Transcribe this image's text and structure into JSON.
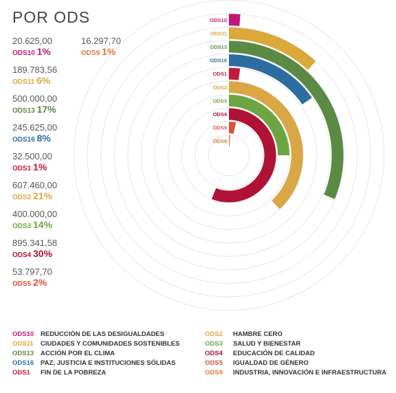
{
  "title": "POR ODS",
  "chart_data": {
    "type": "radial-bar",
    "max_value": 1600000,
    "series": [
      {
        "code": "ODS10",
        "amount": "20.625,00",
        "pct": "1%",
        "value": 20625,
        "color": "#c3167b"
      },
      {
        "code": "ODS11",
        "amount": "189.783,56",
        "pct": "6%",
        "value": 189783.56,
        "color": "#dba83a"
      },
      {
        "code": "ODS13",
        "amount": "500.000,00",
        "pct": "17%",
        "value": 500000,
        "color": "#5a8a43"
      },
      {
        "code": "ODS16",
        "amount": "245.625,00",
        "pct": "8%",
        "value": 245625,
        "color": "#2c6da0"
      },
      {
        "code": "ODS1",
        "amount": "32.500,00",
        "pct": "1%",
        "value": 32500,
        "color": "#c11b3c"
      },
      {
        "code": "ODS2",
        "amount": "607.460,00",
        "pct": "21%",
        "value": 607460,
        "color": "#d9a745"
      },
      {
        "code": "ODS3",
        "amount": "400.000,00",
        "pct": "14%",
        "value": 400000,
        "color": "#6da543"
      },
      {
        "code": "ODS4",
        "amount": "895.341,58",
        "pct": "30%",
        "value": 895341.58,
        "color": "#b01235"
      },
      {
        "code": "ODS5",
        "amount": "53.797,70",
        "pct": "2%",
        "value": 53797.7,
        "color": "#d9533a"
      },
      {
        "code": "ODS9",
        "amount": "16.297,70",
        "pct": "1%",
        "value": 16297.7,
        "color": "#e0793a"
      }
    ]
  },
  "legend": [
    {
      "code": "ODS10",
      "label": "REDUCCIÓN DE LAS DESIGUALDADES",
      "color": "#c3167b"
    },
    {
      "code": "ODS11",
      "label": "CIUDADES Y COMUNIDADES SOSTENIBLES",
      "color": "#dba83a"
    },
    {
      "code": "ODS13",
      "label": "ACCIÓN POR EL CLIMA",
      "color": "#5a8a43"
    },
    {
      "code": "ODS16",
      "label": "PAZ, JUSTICIA E INSTITUCIONES SÓLIDAS",
      "color": "#2c6da0"
    },
    {
      "code": "ODS1",
      "label": "FIN DE LA POBREZA",
      "color": "#c11b3c"
    },
    {
      "code": "ODS2",
      "label": "HAMBRE CERO",
      "color": "#d9a745"
    },
    {
      "code": "ODS3",
      "label": "SALUD Y BIENESTAR",
      "color": "#6da543"
    },
    {
      "code": "ODS4",
      "label": "EDUCACIÓN DE CALIDAD",
      "color": "#b01235"
    },
    {
      "code": "ODS5",
      "label": "IGUALDAD DE GÉNERO",
      "color": "#d9533a"
    },
    {
      "code": "ODS9",
      "label": "INDUSTRIA, INNOVACIÓN E INFRAESTRUCTURA",
      "color": "#e0793a"
    }
  ]
}
